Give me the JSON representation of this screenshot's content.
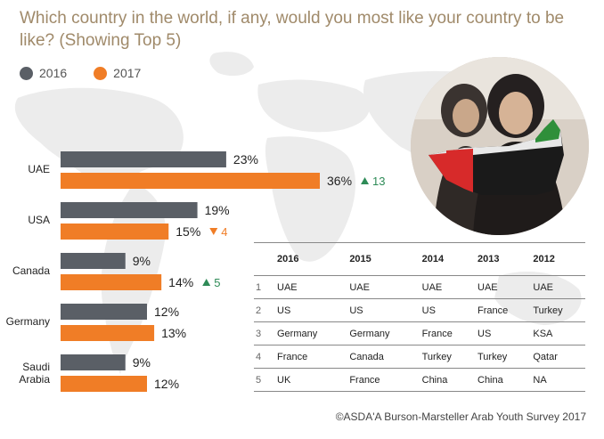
{
  "title": "Which country in the world, if any, would you most like your country to be like? (Showing Top 5)",
  "colors": {
    "2016": "#5a5f66",
    "2017": "#f07d26",
    "up": "#2e8b57",
    "down": "#f07d26",
    "title": "#a08a6a"
  },
  "legend": [
    {
      "name": "2016",
      "color": "#5a5f66"
    },
    {
      "name": "2017",
      "color": "#f07d26"
    }
  ],
  "chart_data": {
    "type": "bar",
    "orientation": "horizontal",
    "categories": [
      "UAE",
      "USA",
      "Canada",
      "Germany",
      "Saudi Arabia"
    ],
    "series": [
      {
        "name": "2016",
        "values": [
          23,
          19,
          9,
          12,
          9
        ],
        "labels": [
          "23%",
          "19%",
          "9%",
          "12%",
          "9%"
        ]
      },
      {
        "name": "2017",
        "values": [
          36,
          15,
          14,
          13,
          12
        ],
        "labels": [
          "36%",
          "15%",
          "14%",
          "13%",
          "12%"
        ]
      }
    ],
    "change": [
      {
        "direction": "up",
        "value": "13"
      },
      {
        "direction": "down",
        "value": "4"
      },
      {
        "direction": "up",
        "value": "5"
      },
      null,
      null
    ],
    "legend_position": "top-left"
  },
  "table": {
    "headers": [
      "",
      "2016",
      "2015",
      "2014",
      "2013",
      "2012"
    ],
    "rows": [
      [
        "1",
        "UAE",
        "UAE",
        "UAE",
        "UAE",
        "UAE"
      ],
      [
        "2",
        "US",
        "US",
        "US",
        "France",
        "Turkey"
      ],
      [
        "3",
        "Germany",
        "Germany",
        "France",
        "US",
        "KSA"
      ],
      [
        "4",
        "France",
        "Canada",
        "Turkey",
        "Turkey",
        "Qatar"
      ],
      [
        "5",
        "UK",
        "France",
        "China",
        "China",
        "NA"
      ]
    ]
  },
  "credit": "©ASDA'A Burson-Marsteller Arab Youth Survey 2017"
}
